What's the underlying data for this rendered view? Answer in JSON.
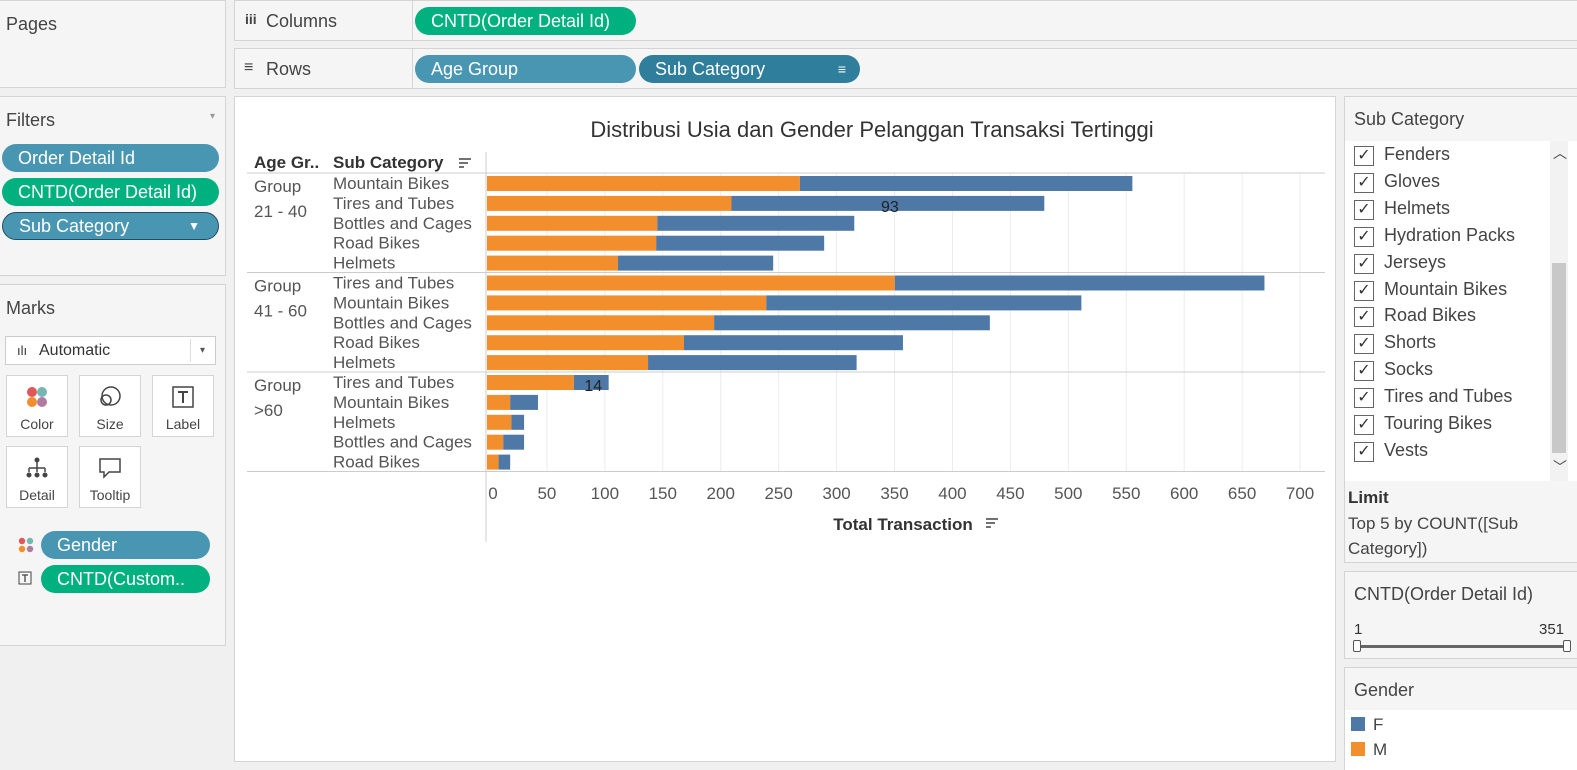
{
  "pages": {
    "title": "Pages"
  },
  "shelves": {
    "columns_label": "Columns",
    "columns_pill": "CNTD(Order Detail Id)",
    "rows_label": "Rows",
    "rows_pills": [
      "Age Group",
      "Sub Category"
    ]
  },
  "filters": {
    "title": "Filters",
    "items": [
      "Order Detail Id",
      "CNTD(Order Detail Id)",
      "Sub Category"
    ]
  },
  "marks": {
    "title": "Marks",
    "type": "Automatic",
    "buttons": [
      "Color",
      "Size",
      "Label",
      "Detail",
      "Tooltip"
    ],
    "fields": [
      "Gender",
      "CNTD(Custom.."
    ]
  },
  "colors": {
    "F": "#4e79a7",
    "M": "#f28e2b",
    "pill_blue": "#4996b2",
    "pill_green": "#00b180"
  },
  "chart_data": {
    "type": "bar",
    "stacked": true,
    "orientation": "horizontal",
    "title": "Distribusi Usia dan Gender Pelanggan Transaksi Tertinggi",
    "row_headers": [
      "Age Gr..",
      "Sub Category"
    ],
    "xlabel": "Total Transaction",
    "xlim": [
      0,
      700
    ],
    "xticks": [
      0,
      50,
      100,
      150,
      200,
      250,
      300,
      350,
      400,
      450,
      500,
      550,
      600,
      650,
      700
    ],
    "groups": [
      {
        "label_lines": [
          "Group",
          "21 - 40"
        ],
        "rows": [
          {
            "category": "Mountain Bikes",
            "M": 270,
            "F": 287
          },
          {
            "category": "Tires and Tubes",
            "M": 211,
            "F": 270
          },
          {
            "category": "Bottles and Cages",
            "M": 147,
            "F": 170
          },
          {
            "category": "Road Bikes",
            "M": 146,
            "F": 145
          },
          {
            "category": "Helmets",
            "M": 113,
            "F": 134
          }
        ]
      },
      {
        "label_lines": [
          "Group",
          "41 - 60"
        ],
        "rows": [
          {
            "category": "Tires and Tubes",
            "M": 352,
            "F": 319
          },
          {
            "category": "Mountain Bikes",
            "M": 241,
            "F": 272
          },
          {
            "category": "Bottles and Cages",
            "M": 196,
            "F": 238
          },
          {
            "category": "Road Bikes",
            "M": 170,
            "F": 189
          },
          {
            "category": "Helmets",
            "M": 139,
            "F": 180
          }
        ]
      },
      {
        "label_lines": [
          "Group",
          ">60"
        ],
        "rows": [
          {
            "category": "Tires and Tubes",
            "M": 75,
            "F": 30
          },
          {
            "category": "Mountain Bikes",
            "M": 20,
            "F": 24
          },
          {
            "category": "Helmets",
            "M": 21,
            "F": 11
          },
          {
            "category": "Bottles and Cages",
            "M": 14,
            "F": 18
          },
          {
            "category": "Road Bikes",
            "M": 10,
            "F": 10
          }
        ]
      }
    ],
    "annotations": [
      {
        "text": "93",
        "group": 0,
        "row": 1,
        "x": 346
      },
      {
        "text": "14",
        "group": 2,
        "row": 0,
        "x": 90
      }
    ]
  },
  "sub_category_filter": {
    "title": "Sub Category",
    "items": [
      "Fenders",
      "Gloves",
      "Helmets",
      "Hydration Packs",
      "Jerseys",
      "Mountain Bikes",
      "Road Bikes",
      "Shorts",
      "Socks",
      "Tires and Tubes",
      "Touring Bikes",
      "Vests"
    ],
    "checked": "✓",
    "limit_title": "Limit",
    "limit_text_1": "Top 5 by COUNT([Sub",
    "limit_text_2": "Category])"
  },
  "cntd_filter": {
    "title": "CNTD(Order Detail Id)",
    "min": "1",
    "max": "351"
  },
  "gender_legend": {
    "title": "Gender",
    "items": [
      "F",
      "M"
    ]
  }
}
